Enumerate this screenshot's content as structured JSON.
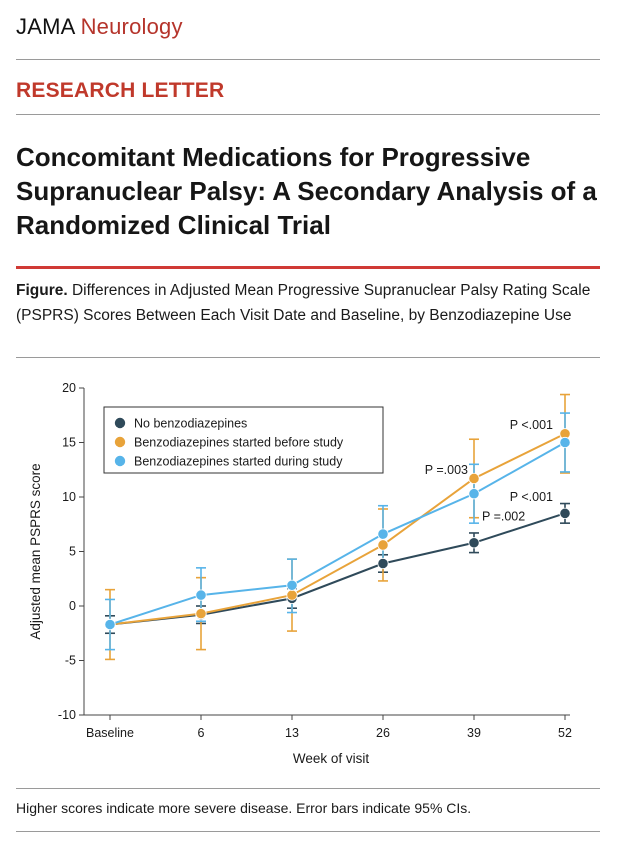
{
  "journal": {
    "name_part1": "JAMA",
    "name_part2": "Neurology"
  },
  "section_label": "RESEARCH LETTER",
  "title": "Concomitant Medications for Progressive Supranuclear Palsy: A Secondary Analysis of a Randomized Clinical Trial",
  "figure": {
    "label": "Figure.",
    "caption": "Differences in Adjusted Mean Progressive Supranuclear Palsy Rating Scale (PSPRS) Scores Between Each Visit Date and Baseline, by Benzodiazepine Use"
  },
  "footnote": "Higher scores indicate more severe disease. Error bars indicate 95% CIs.",
  "colors": {
    "accent_red": "#c0392b",
    "series_none": "#2f4a5a",
    "series_before": "#e8a33a",
    "series_during": "#57b4e9"
  },
  "chart_data": {
    "type": "line",
    "title": "",
    "xlabel": "Week of visit",
    "ylabel": "Adjusted mean PSPRS score",
    "ylim": [
      -10,
      20
    ],
    "yticks": [
      -10,
      -5,
      0,
      5,
      10,
      15,
      20
    ],
    "ytick_labels": [
      "-10",
      "-5",
      "0",
      "5",
      "10",
      "15",
      "20"
    ],
    "categories": [
      "Baseline",
      "6",
      "13",
      "26",
      "39",
      "52"
    ],
    "legend_position": "top-left",
    "series": [
      {
        "name": "No benzodiazepines",
        "color": "#2f4a5a",
        "values": [
          -1.7,
          -0.8,
          0.7,
          3.9,
          5.8,
          8.5
        ],
        "ci_low": [
          -2.5,
          -1.6,
          -0.2,
          3.1,
          4.9,
          7.6
        ],
        "ci_high": [
          -0.9,
          0.0,
          1.6,
          4.7,
          6.7,
          9.4
        ]
      },
      {
        "name": "Benzodiazepines started before study",
        "color": "#e8a33a",
        "values": [
          -1.7,
          -0.7,
          1.0,
          5.6,
          11.7,
          15.8
        ],
        "ci_low": [
          -4.9,
          -4.0,
          -2.3,
          2.3,
          8.1,
          12.2
        ],
        "ci_high": [
          1.5,
          2.6,
          4.3,
          8.9,
          15.3,
          19.4
        ]
      },
      {
        "name": "Benzodiazepines started during study",
        "color": "#57b4e9",
        "values": [
          -1.7,
          1.0,
          1.9,
          6.6,
          10.3,
          15.0
        ],
        "ci_low": [
          -4.0,
          -1.4,
          -0.6,
          4.0,
          7.6,
          12.3
        ],
        "ci_high": [
          0.6,
          3.5,
          4.3,
          9.2,
          13.0,
          17.7
        ]
      }
    ],
    "annotations": [
      {
        "text": "P =.003",
        "x": "39",
        "y": 12.5
      },
      {
        "text": "P =.002",
        "x": "39",
        "y": 8.2
      },
      {
        "text": "P <.001",
        "x": "52",
        "y": 16.6
      },
      {
        "text": "P <.001",
        "x": "52",
        "y": 10.0
      }
    ]
  }
}
